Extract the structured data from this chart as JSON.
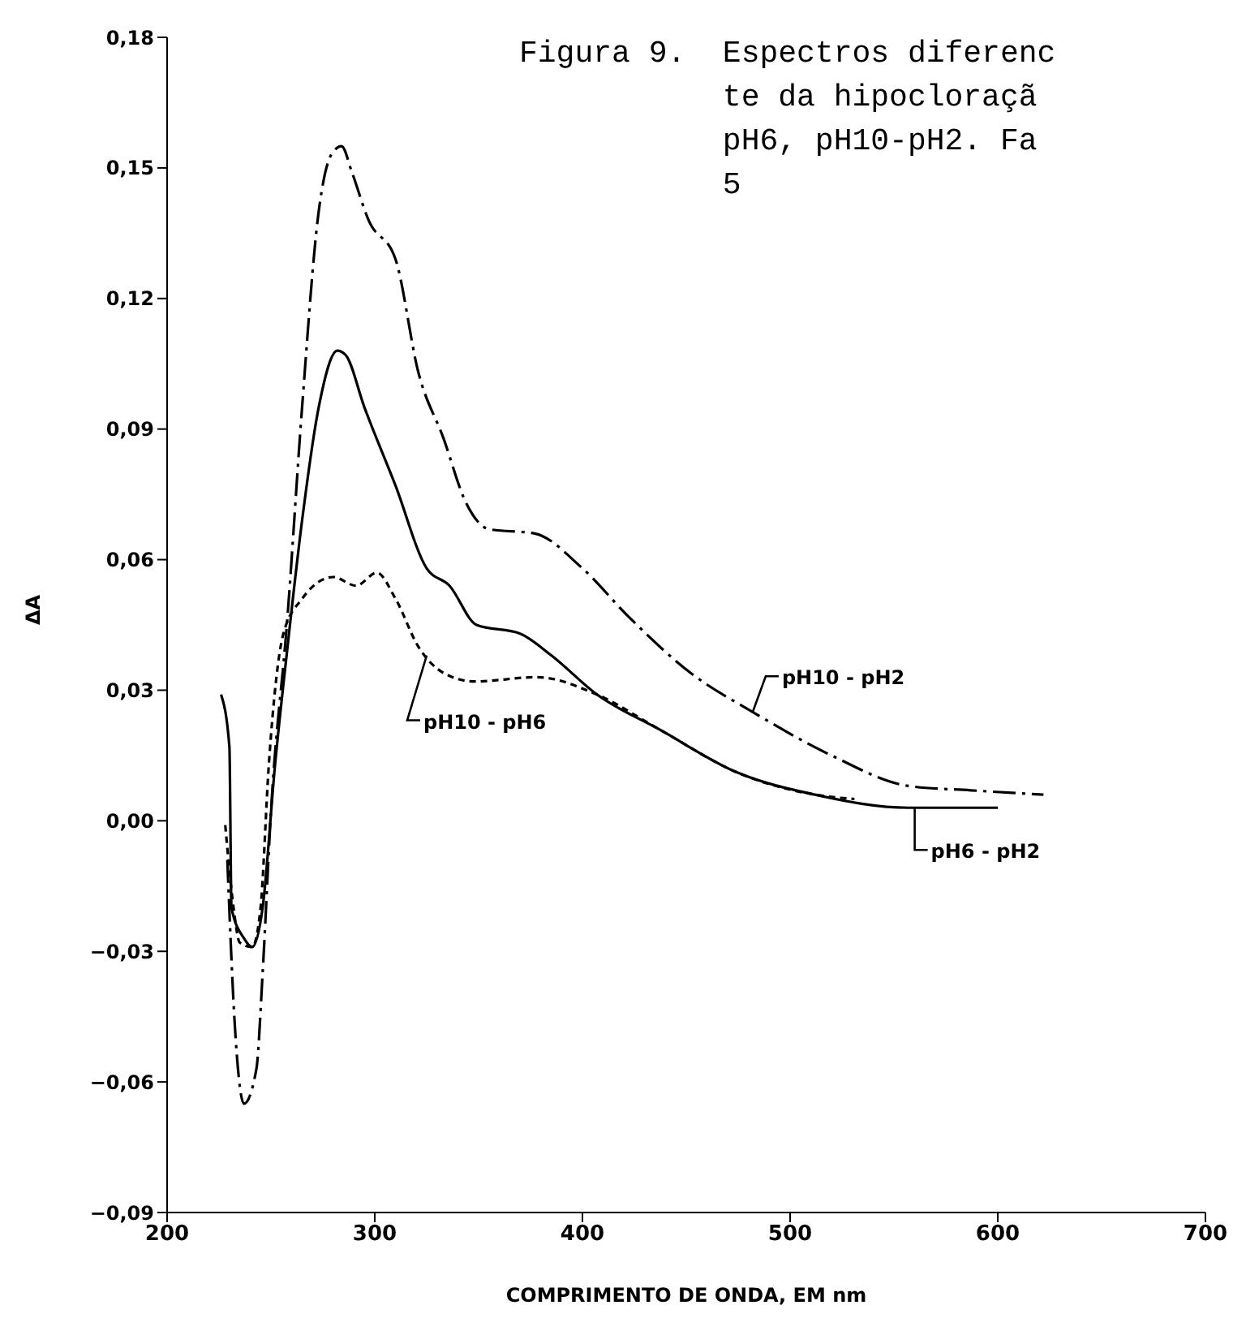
{
  "chart_data": {
    "type": "line",
    "title": "Figura 9.  Espectros diferenc\n           te da hipocloraçã\n           pH6, pH10-pH2. Fa\n           5",
    "xlabel": "COMPRIMENTO DE ONDA, EM nm",
    "ylabel": "ΔA",
    "xlim": [
      200,
      700
    ],
    "xticks": [
      200,
      300,
      400,
      500,
      600,
      700
    ],
    "ylim": [
      -0.09,
      0.18
    ],
    "yticks": [
      {
        "value": -0.09,
        "label": "−0,09"
      },
      {
        "value": -0.06,
        "label": "−0,06"
      },
      {
        "value": -0.03,
        "label": "−0,03"
      },
      {
        "value": 0,
        "label": "0,00"
      },
      {
        "value": 0.03,
        "label": "0,03"
      },
      {
        "value": 0.06,
        "label": "0,06"
      },
      {
        "value": 0.09,
        "label": "0,09"
      },
      {
        "value": 0.12,
        "label": "0,12"
      },
      {
        "value": 0.15,
        "label": "0,15"
      },
      {
        "value": 0.18,
        "label": "0,18"
      }
    ],
    "marker": "none",
    "series": [
      {
        "color": "#000000",
        "line_style": "solid",
        "x": [
          226,
          230,
          231,
          237,
          241,
          246,
          252,
          258,
          265,
          273,
          282,
          286,
          295,
          310,
          325,
          336,
          349,
          370,
          385,
          407,
          437,
          475,
          512,
          557,
          600
        ],
        "values": [
          0.029,
          0.017,
          -0.02,
          -0.027,
          -0.029,
          -0.02,
          0.013,
          0.04,
          0.069,
          0.095,
          0.108,
          0.107,
          0.095,
          0.077,
          0.058,
          0.054,
          0.045,
          0.043,
          0.038,
          0.029,
          0.021,
          0.011,
          0.006,
          0.003,
          0.003
        ]
      },
      {
        "color": "#000000",
        "line_style": "dashed",
        "x": [
          229,
          233,
          237,
          243,
          246,
          250,
          258,
          265,
          273,
          279,
          284,
          289,
          297,
          310,
          321,
          333,
          344,
          355,
          377,
          400,
          422,
          452,
          482,
          520,
          557,
          587,
          622
        ],
        "values": [
          -0.009,
          -0.05,
          -0.065,
          -0.057,
          -0.035,
          0.002,
          0.047,
          0.095,
          0.14,
          0.153,
          0.155,
          0.149,
          0.138,
          0.129,
          0.103,
          0.088,
          0.073,
          0.067,
          0.066,
          0.058,
          0.047,
          0.034,
          0.025,
          0.015,
          0.008,
          0.007,
          0.006
        ]
      },
      {
        "color": "#000000",
        "line_style": "dotted",
        "x": [
          228,
          232,
          235,
          241,
          245,
          249,
          256,
          265,
          280,
          291,
          301,
          310,
          321,
          333,
          348,
          378,
          407,
          437,
          475,
          512,
          531
        ],
        "values": [
          -0.001,
          -0.02,
          -0.028,
          -0.029,
          -0.02,
          0.013,
          0.043,
          0.051,
          0.056,
          0.054,
          0.057,
          0.051,
          0.04,
          0.034,
          0.032,
          0.033,
          0.029,
          0.021,
          0.011,
          0.006,
          0.005
        ]
      }
    ],
    "annotations": [
      {
        "text": "pH10 - pH2",
        "x": 482,
        "y": 0.025
      },
      {
        "text": "pH6 - pH2",
        "x": 560,
        "y": 0.003
      },
      {
        "text": "pH10 - pH6",
        "x": 325,
        "y": 0.038
      }
    ]
  }
}
